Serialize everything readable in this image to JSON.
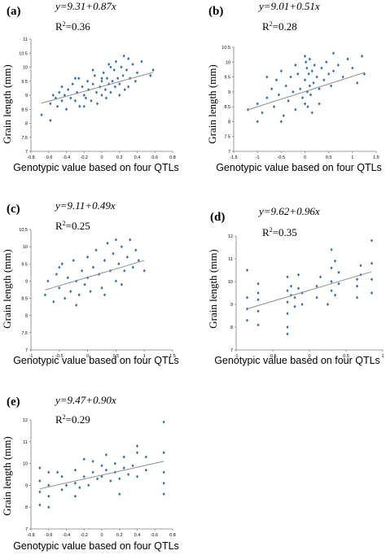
{
  "chart_data": [
    {
      "panel": "(a)",
      "type": "scatter",
      "equation": "y=9.31+0.87x",
      "r2_base": "R",
      "r2_sup": "2",
      "r2_value": "=0.36",
      "xlabel": "Genotypic value based on four QTLs",
      "ylabel": "Grain length (mm)",
      "xlim": [
        -0.8,
        0.8
      ],
      "ylim": [
        7,
        11
      ],
      "xticks": [
        "-0.8",
        "-0.6",
        "-0.4",
        "-0.2",
        "0",
        "0.2",
        "0.4",
        "0.6",
        "0.8"
      ],
      "yticks": [
        "7",
        "7.5",
        "8",
        "8.5",
        "9",
        "9.5",
        "10",
        "10.5",
        "11"
      ],
      "trend": {
        "intercept": 9.31,
        "slope": 0.87
      },
      "points": [
        [
          -0.68,
          8.3
        ],
        [
          -0.58,
          8.1
        ],
        [
          -0.58,
          8.7
        ],
        [
          -0.52,
          8.9
        ],
        [
          -0.5,
          8.6
        ],
        [
          -0.48,
          9.1
        ],
        [
          -0.45,
          8.8
        ],
        [
          -0.42,
          9.0
        ],
        [
          -0.4,
          8.5
        ],
        [
          -0.38,
          9.2
        ],
        [
          -0.35,
          8.9
        ],
        [
          -0.33,
          9.4
        ],
        [
          -0.3,
          8.8
        ],
        [
          -0.28,
          9.1
        ],
        [
          -0.26,
          9.6
        ],
        [
          -0.25,
          8.6
        ],
        [
          -0.22,
          9.3
        ],
        [
          -0.2,
          9.0
        ],
        [
          -0.18,
          8.9
        ],
        [
          -0.16,
          9.5
        ],
        [
          -0.15,
          9.2
        ],
        [
          -0.12,
          8.8
        ],
        [
          -0.1,
          9.4
        ],
        [
          -0.08,
          9.7
        ],
        [
          -0.06,
          9.1
        ],
        [
          -0.05,
          8.7
        ],
        [
          -0.02,
          9.3
        ],
        [
          0.0,
          9.5
        ],
        [
          0.0,
          9.0
        ],
        [
          0.02,
          9.8
        ],
        [
          0.04,
          9.2
        ],
        [
          0.05,
          8.9
        ],
        [
          0.06,
          9.6
        ],
        [
          0.08,
          9.4
        ],
        [
          0.1,
          10.0
        ],
        [
          0.1,
          9.1
        ],
        [
          0.12,
          9.5
        ],
        [
          0.14,
          9.9
        ],
        [
          0.15,
          9.3
        ],
        [
          0.16,
          10.2
        ],
        [
          0.18,
          9.6
        ],
        [
          0.2,
          9.4
        ],
        [
          0.22,
          10.0
        ],
        [
          0.24,
          9.7
        ],
        [
          0.25,
          10.4
        ],
        [
          0.26,
          9.2
        ],
        [
          0.28,
          9.9
        ],
        [
          0.3,
          10.3
        ],
        [
          0.32,
          9.6
        ],
        [
          0.35,
          10.1
        ],
        [
          0.38,
          9.5
        ],
        [
          0.4,
          9.8
        ],
        [
          0.45,
          10.2
        ],
        [
          0.55,
          9.7
        ],
        [
          0.58,
          9.9
        ],
        [
          -0.55,
          9.0
        ],
        [
          -0.45,
          9.3
        ],
        [
          -0.3,
          9.6
        ],
        [
          -0.1,
          9.9
        ],
        [
          0.08,
          10.1
        ],
        [
          0.3,
          9.3
        ],
        [
          -0.2,
          8.6
        ],
        [
          0.0,
          9.6
        ],
        [
          0.2,
          9.0
        ]
      ]
    },
    {
      "panel": "(b)",
      "type": "scatter",
      "equation": "y=9.01+0.51x",
      "r2_base": "R",
      "r2_sup": "2",
      "r2_value": "=0.28",
      "xlabel": "Genotypic value based on four QTLs",
      "ylabel": "Grain length (mm)",
      "xlim": [
        -1.5,
        1.5
      ],
      "ylim": [
        7,
        10.5
      ],
      "xticks": [
        "-1.5",
        "-1",
        "-0.5",
        "0",
        "0.5",
        "1",
        "1.5"
      ],
      "yticks": [
        "7",
        "7.5",
        "8",
        "8.5",
        "9",
        "9.5",
        "10",
        "10.5"
      ],
      "trend": {
        "intercept": 9.01,
        "slope": 0.51
      },
      "points": [
        [
          -1.2,
          8.4
        ],
        [
          -1.0,
          8.0
        ],
        [
          -1.0,
          8.6
        ],
        [
          -0.9,
          8.3
        ],
        [
          -0.8,
          8.8
        ],
        [
          -0.7,
          9.1
        ],
        [
          -0.65,
          8.5
        ],
        [
          -0.6,
          9.4
        ],
        [
          -0.55,
          8.9
        ],
        [
          -0.5,
          9.7
        ],
        [
          -0.45,
          8.2
        ],
        [
          -0.4,
          9.2
        ],
        [
          -0.35,
          8.7
        ],
        [
          -0.3,
          9.5
        ],
        [
          -0.25,
          9.0
        ],
        [
          -0.2,
          8.4
        ],
        [
          -0.15,
          9.6
        ],
        [
          -0.1,
          9.1
        ],
        [
          -0.05,
          8.8
        ],
        [
          0.0,
          10.2
        ],
        [
          0.0,
          9.4
        ],
        [
          0.0,
          8.6
        ],
        [
          0.02,
          10.0
        ],
        [
          0.04,
          9.8
        ],
        [
          0.05,
          9.0
        ],
        [
          0.06,
          8.5
        ],
        [
          0.08,
          9.6
        ],
        [
          0.1,
          10.1
        ],
        [
          0.1,
          9.2
        ],
        [
          0.12,
          8.9
        ],
        [
          0.15,
          9.7
        ],
        [
          0.18,
          9.3
        ],
        [
          0.2,
          9.9
        ],
        [
          0.25,
          9.5
        ],
        [
          0.3,
          9.1
        ],
        [
          0.35,
          9.8
        ],
        [
          0.4,
          9.4
        ],
        [
          0.45,
          10.0
        ],
        [
          0.5,
          9.6
        ],
        [
          0.55,
          9.2
        ],
        [
          0.6,
          9.7
        ],
        [
          0.7,
          9.9
        ],
        [
          0.8,
          9.5
        ],
        [
          0.9,
          10.1
        ],
        [
          1.0,
          9.8
        ],
        [
          1.1,
          9.3
        ],
        [
          1.2,
          10.2
        ],
        [
          1.25,
          9.6
        ],
        [
          -0.8,
          9.5
        ],
        [
          -0.5,
          8.0
        ],
        [
          0.3,
          8.6
        ],
        [
          0.6,
          10.3
        ],
        [
          -0.2,
          9.9
        ],
        [
          0.15,
          8.3
        ]
      ]
    },
    {
      "panel": "(c)",
      "type": "scatter",
      "equation": "y=9.11+0.49x",
      "r2_base": "R",
      "r2_sup": "2",
      "r2_value": "=0.25",
      "xlabel": "Genotypic value based on four QTLs",
      "ylabel": "Grain length (mm)",
      "xlim": [
        -1,
        1.5
      ],
      "ylim": [
        7,
        10.5
      ],
      "xticks": [
        "-1",
        "-0.5",
        "0",
        "0.5",
        "1",
        "1.5"
      ],
      "yticks": [
        "7",
        "7.5",
        "8",
        "8.5",
        "9",
        "9.5",
        "10",
        "10.5"
      ],
      "trend": {
        "intercept": 9.11,
        "slope": 0.49
      },
      "points": [
        [
          -0.75,
          8.6
        ],
        [
          -0.7,
          9.0
        ],
        [
          -0.6,
          8.4
        ],
        [
          -0.55,
          9.2
        ],
        [
          -0.5,
          8.8
        ],
        [
          -0.45,
          9.5
        ],
        [
          -0.4,
          8.5
        ],
        [
          -0.35,
          9.1
        ],
        [
          -0.3,
          8.7
        ],
        [
          -0.25,
          9.6
        ],
        [
          -0.2,
          9.0
        ],
        [
          -0.15,
          8.6
        ],
        [
          -0.1,
          9.3
        ],
        [
          -0.05,
          8.9
        ],
        [
          0.0,
          9.7
        ],
        [
          0.0,
          9.1
        ],
        [
          0.05,
          8.7
        ],
        [
          0.1,
          9.4
        ],
        [
          0.15,
          9.9
        ],
        [
          0.2,
          9.2
        ],
        [
          0.25,
          8.8
        ],
        [
          0.3,
          9.6
        ],
        [
          0.35,
          10.1
        ],
        [
          0.4,
          9.3
        ],
        [
          0.45,
          9.8
        ],
        [
          0.5,
          10.2
        ],
        [
          0.5,
          9.0
        ],
        [
          0.55,
          9.5
        ],
        [
          0.6,
          10.0
        ],
        [
          0.65,
          9.3
        ],
        [
          0.7,
          9.7
        ],
        [
          0.75,
          10.2
        ],
        [
          0.8,
          9.4
        ],
        [
          0.85,
          9.9
        ],
        [
          0.9,
          9.6
        ],
        [
          1.0,
          9.3
        ],
        [
          -0.5,
          9.4
        ],
        [
          -0.2,
          8.3
        ],
        [
          0.3,
          8.6
        ],
        [
          0.6,
          8.9
        ]
      ]
    },
    {
      "panel": "(d)",
      "type": "scatter",
      "equation": "y=9.62+0.96x",
      "r2_base": "R",
      "r2_sup": "2",
      "r2_value": "=0.35",
      "xlabel": "Genotypic value based on four QTLs",
      "ylabel": "Grain length (mm)",
      "xlim": [
        -1,
        1
      ],
      "ylim": [
        7,
        12
      ],
      "xticks": [
        "-1",
        "-0.5",
        "0",
        "0.5",
        "1"
      ],
      "yticks": [
        "7",
        "8",
        "9",
        "10",
        "11",
        "12"
      ],
      "trend": {
        "intercept": 9.62,
        "slope": 0.96
      },
      "points": [
        [
          -0.85,
          8.3
        ],
        [
          -0.85,
          8.8
        ],
        [
          -0.85,
          9.3
        ],
        [
          -0.85,
          10.5
        ],
        [
          -0.7,
          8.1
        ],
        [
          -0.7,
          8.7
        ],
        [
          -0.7,
          9.2
        ],
        [
          -0.7,
          9.9
        ],
        [
          -0.3,
          8.6
        ],
        [
          -0.3,
          9.1
        ],
        [
          -0.3,
          9.6
        ],
        [
          -0.3,
          10.2
        ],
        [
          -0.3,
          8.0
        ],
        [
          -0.25,
          9.4
        ],
        [
          -0.25,
          9.8
        ],
        [
          -0.2,
          8.9
        ],
        [
          -0.2,
          9.3
        ],
        [
          -0.15,
          9.7
        ],
        [
          -0.15,
          10.3
        ],
        [
          -0.1,
          9.0
        ],
        [
          -0.1,
          9.5
        ],
        [
          0.1,
          9.3
        ],
        [
          0.1,
          9.8
        ],
        [
          0.15,
          10.2
        ],
        [
          0.25,
          9.0
        ],
        [
          0.3,
          9.6
        ],
        [
          0.3,
          10.0
        ],
        [
          0.3,
          10.6
        ],
        [
          0.35,
          9.4
        ],
        [
          0.35,
          10.9
        ],
        [
          0.4,
          9.9
        ],
        [
          0.4,
          10.4
        ],
        [
          0.65,
          9.3
        ],
        [
          0.65,
          9.8
        ],
        [
          0.7,
          10.3
        ],
        [
          0.7,
          10.7
        ],
        [
          0.85,
          9.5
        ],
        [
          0.85,
          10.1
        ],
        [
          0.85,
          10.8
        ],
        [
          0.85,
          11.8
        ],
        [
          -0.3,
          7.7
        ],
        [
          0.65,
          10.1
        ],
        [
          -0.7,
          9.5
        ],
        [
          0.3,
          11.4
        ]
      ]
    },
    {
      "panel": "(e)",
      "type": "scatter",
      "equation": "y=9.47+0.90x",
      "r2_base": "R",
      "r2_sup": "2",
      "r2_value": "=0.29",
      "xlabel": "Genotypic value based on four QTLs",
      "ylabel": "Grain length (mm)",
      "xlim": [
        -0.8,
        0.8
      ],
      "ylim": [
        7,
        12
      ],
      "xticks": [
        "-0.8",
        "-0.6",
        "-0.4",
        "-0.2",
        "0",
        "0.2",
        "0.4",
        "0.6",
        "0.8"
      ],
      "yticks": [
        "7",
        "8",
        "9",
        "10",
        "11",
        "12"
      ],
      "trend": {
        "intercept": 9.47,
        "slope": 0.9
      },
      "points": [
        [
          -0.7,
          8.1
        ],
        [
          -0.7,
          8.7
        ],
        [
          -0.7,
          9.2
        ],
        [
          -0.7,
          9.8
        ],
        [
          -0.6,
          8.0
        ],
        [
          -0.6,
          8.5
        ],
        [
          -0.6,
          9.0
        ],
        [
          -0.6,
          9.6
        ],
        [
          -0.45,
          8.8
        ],
        [
          -0.45,
          9.4
        ],
        [
          -0.4,
          9.0
        ],
        [
          -0.3,
          9.1
        ],
        [
          -0.3,
          9.7
        ],
        [
          -0.25,
          8.9
        ],
        [
          -0.2,
          9.4
        ],
        [
          -0.2,
          10.2
        ],
        [
          -0.15,
          9.0
        ],
        [
          -0.1,
          9.6
        ],
        [
          -0.1,
          10.1
        ],
        [
          -0.05,
          9.3
        ],
        [
          0.0,
          9.4
        ],
        [
          0.0,
          9.9
        ],
        [
          0.05,
          9.7
        ],
        [
          0.1,
          9.2
        ],
        [
          0.15,
          9.6
        ],
        [
          0.15,
          10.0
        ],
        [
          0.2,
          8.6
        ],
        [
          0.2,
          9.3
        ],
        [
          0.25,
          9.8
        ],
        [
          0.25,
          10.3
        ],
        [
          0.3,
          9.5
        ],
        [
          0.35,
          9.9
        ],
        [
          0.4,
          10.5
        ],
        [
          0.4,
          10.8
        ],
        [
          0.5,
          9.7
        ],
        [
          0.5,
          10.3
        ],
        [
          0.7,
          9.1
        ],
        [
          0.7,
          9.6
        ],
        [
          0.7,
          10.5
        ],
        [
          0.7,
          11.9
        ],
        [
          -0.5,
          9.6
        ],
        [
          -0.3,
          8.5
        ],
        [
          0.05,
          10.4
        ],
        [
          0.4,
          9.4
        ],
        [
          0.7,
          8.6
        ]
      ]
    }
  ]
}
